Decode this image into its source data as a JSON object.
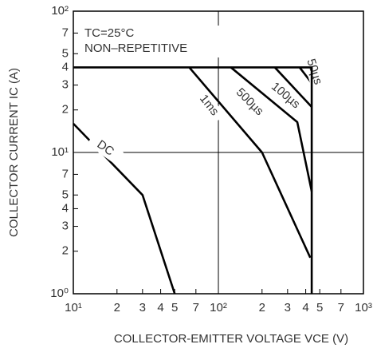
{
  "chart_data": {
    "type": "line",
    "annotations": [
      "TC=25°C",
      "NON–REPETITIVE"
    ],
    "xlabel": "COLLECTOR-EMITTER VOLTAGE   VCE (V)",
    "ylabel": "COLLECTOR CURRENT   IC (A)",
    "xscale": "log",
    "yscale": "log",
    "grid": true,
    "color": "#000000",
    "xlim": [
      10,
      1000
    ],
    "xticks": [
      {
        "value": 10,
        "label": "10¹"
      },
      {
        "value": 20,
        "label": "2"
      },
      {
        "value": 30,
        "label": "3"
      },
      {
        "value": 40,
        "label": "4"
      },
      {
        "value": 50,
        "label": "5"
      },
      {
        "value": 70,
        "label": "7"
      },
      {
        "value": 100,
        "label": "10²"
      },
      {
        "value": 200,
        "label": "2"
      },
      {
        "value": 300,
        "label": "3"
      },
      {
        "value": 400,
        "label": "4"
      },
      {
        "value": 500,
        "label": "5"
      },
      {
        "value": 700,
        "label": "7"
      },
      {
        "value": 1000,
        "label": "10³"
      }
    ],
    "ylim": [
      1,
      100
    ],
    "yticks": [
      {
        "value": 1,
        "label": "10⁰"
      },
      2,
      3,
      4,
      5,
      7,
      {
        "value": 10,
        "label": "10¹"
      },
      {
        "value": 20,
        "label": "2"
      },
      {
        "value": 30,
        "label": "3"
      },
      {
        "value": 40,
        "label": "4"
      },
      {
        "value": 50,
        "label": "5"
      },
      {
        "value": 70,
        "label": "7"
      },
      {
        "value": 100,
        "label": "10²"
      }
    ],
    "series": [
      {
        "name": "DC",
        "x": [
          10,
          30,
          50
        ],
        "values": [
          16,
          5,
          1
        ]
      },
      {
        "name": "1ms",
        "x": [
          63,
          200,
          430
        ],
        "values": [
          40,
          10,
          1.8
        ]
      },
      {
        "name": "500µs",
        "x": [
          122,
          350,
          440
        ],
        "values": [
          40,
          16.4,
          5.3
        ]
      },
      {
        "name": "100µs",
        "x": [
          245,
          440
        ],
        "values": [
          40,
          21
        ]
      },
      {
        "name": "50µs",
        "x": [
          363,
          440
        ],
        "values": [
          40,
          31
        ]
      },
      {
        "x": [
          10,
          440,
          440
        ],
        "values": [
          40,
          40,
          1
        ]
      }
    ]
  }
}
